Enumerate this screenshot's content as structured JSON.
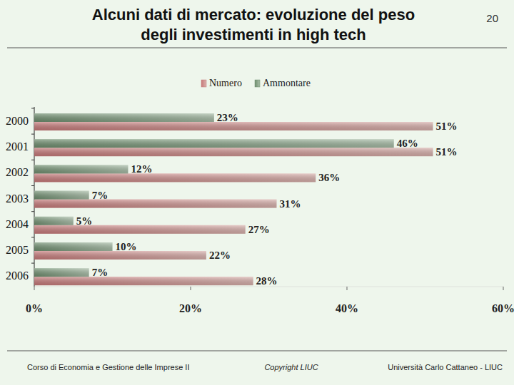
{
  "slide": {
    "title": [
      "Alcuni dati di mercato: evoluzione del peso",
      "degli investimenti in high tech"
    ],
    "page": "20",
    "footer": {
      "left": "Corso di Economia e Gestione delle Imprese II",
      "center": "Copyright LIUC",
      "right": "Università Carlo Cattaneo - LIUC"
    }
  },
  "chart_data": {
    "type": "bar",
    "orientation": "horizontal",
    "legend": "top",
    "data_labels": true,
    "grid": false,
    "categories": [
      "2000",
      "2001",
      "2002",
      "2003",
      "2004",
      "2005",
      "2006"
    ],
    "series": [
      {
        "name": "Numero",
        "color": "#c87a7a",
        "values": [
          51,
          51,
          36,
          31,
          27,
          22,
          28
        ],
        "value_labels": [
          "51%",
          "51%",
          "36%",
          "31%",
          "27%",
          "22%",
          "28%"
        ]
      },
      {
        "name": "Ammontare",
        "color": "#6f8f6f",
        "values": [
          23,
          46,
          12,
          7,
          5,
          10,
          7
        ],
        "value_labels": [
          "23%",
          "46%",
          "12%",
          "7%",
          "5%",
          "10%",
          "7%"
        ]
      }
    ],
    "xlim": [
      0,
      60
    ],
    "xticks": [
      {
        "value": 0,
        "label": "0%"
      },
      {
        "value": 20,
        "label": "20%"
      },
      {
        "value": 40,
        "label": "40%"
      },
      {
        "value": 60,
        "label": "60%"
      }
    ]
  }
}
